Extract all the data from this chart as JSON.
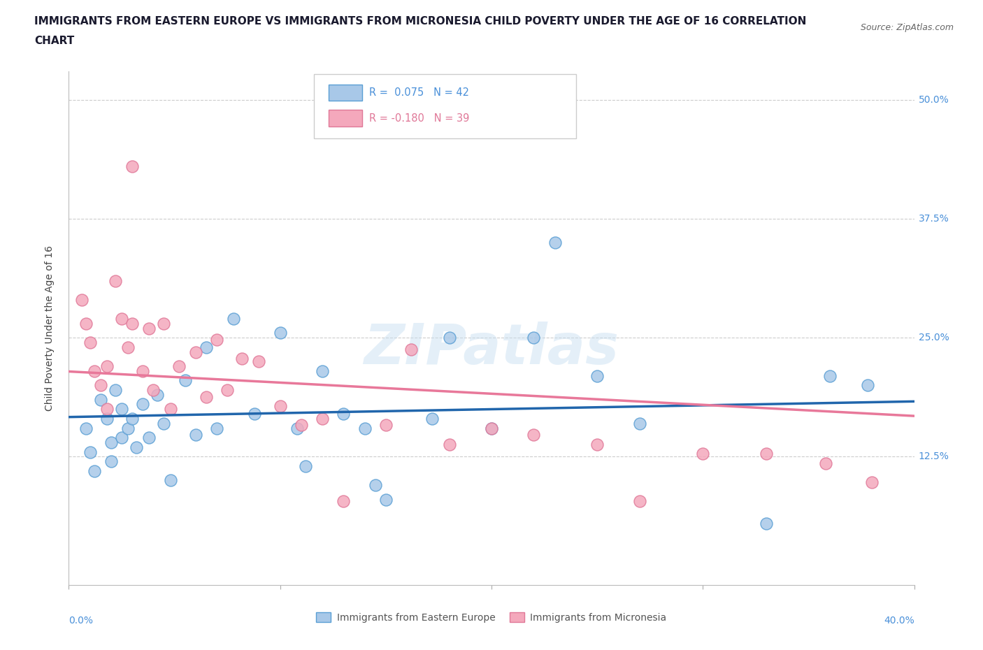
{
  "title_line1": "IMMIGRANTS FROM EASTERN EUROPE VS IMMIGRANTS FROM MICRONESIA CHILD POVERTY UNDER THE AGE OF 16 CORRELATION",
  "title_line2": "CHART",
  "source": "Source: ZipAtlas.com",
  "ylabel": "Child Poverty Under the Age of 16",
  "legend_labels": [
    "Immigrants from Eastern Europe",
    "Immigrants from Micronesia"
  ],
  "legend_R": [
    0.075,
    -0.18
  ],
  "legend_N": [
    42,
    39
  ],
  "ytick_vals": [
    0.0,
    0.125,
    0.25,
    0.375,
    0.5
  ],
  "ytick_labels": [
    "",
    "12.5%",
    "25.0%",
    "37.5%",
    "50.0%"
  ],
  "xlim": [
    0.0,
    0.4
  ],
  "ylim": [
    -0.01,
    0.53
  ],
  "blue_color": "#a8c8e8",
  "pink_color": "#f4a8bc",
  "blue_edge_color": "#5a9fd4",
  "pink_edge_color": "#e07898",
  "blue_line_color": "#2166ac",
  "pink_line_color": "#e8789a",
  "right_label_color": "#4a90d9",
  "watermark": "ZIPatlas",
  "blue_x": [
    0.008,
    0.01,
    0.012,
    0.015,
    0.018,
    0.02,
    0.02,
    0.022,
    0.025,
    0.025,
    0.028,
    0.03,
    0.032,
    0.035,
    0.038,
    0.042,
    0.045,
    0.048,
    0.055,
    0.06,
    0.065,
    0.07,
    0.078,
    0.088,
    0.1,
    0.108,
    0.112,
    0.12,
    0.13,
    0.14,
    0.145,
    0.15,
    0.172,
    0.18,
    0.2,
    0.22,
    0.23,
    0.25,
    0.27,
    0.33,
    0.36,
    0.378
  ],
  "blue_y": [
    0.155,
    0.13,
    0.11,
    0.185,
    0.165,
    0.14,
    0.12,
    0.195,
    0.175,
    0.145,
    0.155,
    0.165,
    0.135,
    0.18,
    0.145,
    0.19,
    0.16,
    0.1,
    0.205,
    0.148,
    0.24,
    0.155,
    0.27,
    0.17,
    0.255,
    0.155,
    0.115,
    0.215,
    0.17,
    0.155,
    0.095,
    0.08,
    0.165,
    0.25,
    0.155,
    0.25,
    0.35,
    0.21,
    0.16,
    0.055,
    0.21,
    0.2
  ],
  "pink_x": [
    0.006,
    0.008,
    0.01,
    0.012,
    0.015,
    0.018,
    0.018,
    0.022,
    0.025,
    0.028,
    0.03,
    0.03,
    0.035,
    0.038,
    0.04,
    0.045,
    0.048,
    0.052,
    0.06,
    0.065,
    0.07,
    0.075,
    0.082,
    0.09,
    0.1,
    0.11,
    0.12,
    0.13,
    0.15,
    0.162,
    0.18,
    0.2,
    0.22,
    0.25,
    0.27,
    0.3,
    0.33,
    0.358,
    0.38
  ],
  "pink_y": [
    0.29,
    0.265,
    0.245,
    0.215,
    0.2,
    0.175,
    0.22,
    0.31,
    0.27,
    0.24,
    0.43,
    0.265,
    0.215,
    0.26,
    0.195,
    0.265,
    0.175,
    0.22,
    0.235,
    0.188,
    0.248,
    0.195,
    0.228,
    0.225,
    0.178,
    0.158,
    0.165,
    0.078,
    0.158,
    0.238,
    0.138,
    0.155,
    0.148,
    0.138,
    0.078,
    0.128,
    0.128,
    0.118,
    0.098
  ]
}
